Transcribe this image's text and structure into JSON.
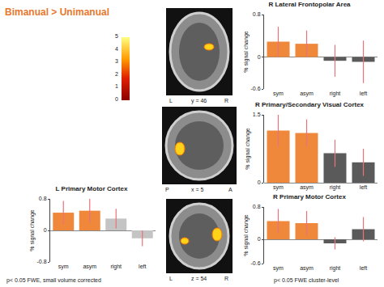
{
  "figure_title": "Bimanual > Unimanual",
  "colorbar": {
    "range": [
      0,
      5
    ],
    "ticks": [
      0,
      1,
      2,
      3,
      4,
      5
    ]
  },
  "slices": [
    {
      "left": "L",
      "label": "y = 46",
      "right": "R"
    },
    {
      "left": "P",
      "label": "x = 5",
      "right": "A"
    },
    {
      "left": "L",
      "label": "z = 54",
      "right": "R"
    }
  ],
  "footnotes": [
    "p< 0.05 FWE, small volume corrected",
    "p< 0.05 FWE cluster-level"
  ],
  "chart_data": [
    {
      "type": "bar",
      "title": "R Lateral Frontopolar Area",
      "ylabel": "% signal change",
      "categories": [
        "sym",
        "asym",
        "right",
        "left"
      ],
      "values": [
        0.29,
        0.25,
        -0.07,
        -0.09
      ],
      "errors": [
        0.28,
        0.25,
        0.3,
        0.4
      ],
      "colors": [
        "#f0883c",
        "#f0883c",
        "#5a5a5a",
        "#5a5a5a"
      ],
      "ylim": [
        -0.6,
        0.8
      ],
      "yticks": [
        -0.6,
        0,
        0.8
      ],
      "grid": false
    },
    {
      "type": "bar",
      "title": "R Primary/Secondary Visual Cortex",
      "ylabel": "% signal change",
      "categories": [
        "sym",
        "asym",
        "right",
        "left"
      ],
      "values": [
        1.15,
        1.1,
        0.65,
        0.45
      ],
      "errors": [
        0.35,
        0.3,
        0.3,
        0.3
      ],
      "colors": [
        "#f0883c",
        "#f0883c",
        "#5a5a5a",
        "#5a5a5a"
      ],
      "ylim": [
        0,
        1.5
      ],
      "yticks": [
        0,
        1.5
      ],
      "grid": false
    },
    {
      "type": "bar",
      "title": "L Primary Motor Cortex",
      "ylabel": "% signal change",
      "categories": [
        "sym",
        "asym",
        "right",
        "left"
      ],
      "values": [
        0.45,
        0.5,
        0.3,
        -0.2
      ],
      "errors": [
        0.3,
        0.3,
        0.25,
        0.2
      ],
      "colors": [
        "#f0883c",
        "#f0883c",
        "#c4c4c4",
        "#c4c4c4"
      ],
      "ylim": [
        -0.8,
        0.8
      ],
      "yticks": [
        -0.8,
        0,
        0.8
      ],
      "grid": false
    },
    {
      "type": "bar",
      "title": "R Primary Motor Cortex",
      "ylabel": "% signal change",
      "categories": [
        "sym",
        "asym",
        "right",
        "left"
      ],
      "values": [
        0.45,
        0.4,
        -0.1,
        0.25
      ],
      "errors": [
        0.3,
        0.3,
        0.15,
        0.3
      ],
      "colors": [
        "#f0883c",
        "#f0883c",
        "#5a5a5a",
        "#5a5a5a"
      ],
      "ylim": [
        -0.6,
        0.8
      ],
      "yticks": [
        -0.6,
        0,
        0.8
      ],
      "grid": false
    }
  ]
}
